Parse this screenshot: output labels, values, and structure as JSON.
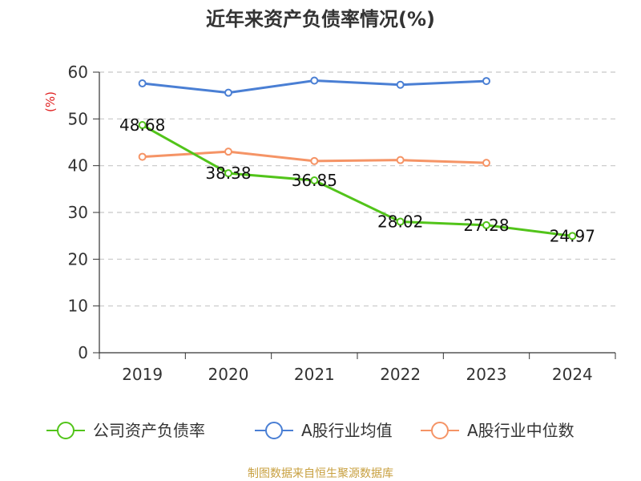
{
  "chart_data": {
    "type": "line",
    "title": "近年来资产负债率情况(%)",
    "ylabel": "(%)",
    "xlabel": "",
    "categories": [
      "2019",
      "2020",
      "2021",
      "2022",
      "2023",
      "2024"
    ],
    "ylim": [
      0,
      60
    ],
    "yticks": [
      0,
      10,
      20,
      30,
      40,
      50,
      60
    ],
    "grid": true,
    "legend_position": "bottom",
    "series": [
      {
        "name": "公司资产负债率",
        "color": "#52c41a",
        "values": [
          48.68,
          38.38,
          36.85,
          28.02,
          27.28,
          24.97
        ],
        "labels": [
          "48.68",
          "38.38",
          "36.85",
          "28.02",
          "27.28",
          "24.97"
        ]
      },
      {
        "name": "A股行业均值",
        "color": "#4a7fd4",
        "values": [
          57.6,
          55.6,
          58.2,
          57.3,
          58.1,
          null
        ]
      },
      {
        "name": "A股行业中位数",
        "color": "#f59466",
        "values": [
          41.9,
          43.0,
          41.0,
          41.2,
          40.6,
          null
        ]
      }
    ]
  },
  "footer": {
    "source": "制图数据来自恒生聚源数据库"
  }
}
